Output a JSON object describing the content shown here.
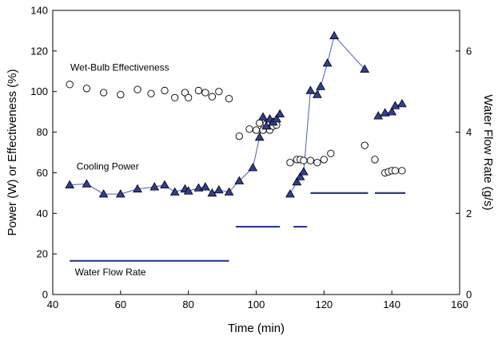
{
  "chart_data": {
    "type": "scatter",
    "title": "",
    "xlabel": "Time (min)",
    "ylabel_left": "Power (W) or Effectiveness (%)",
    "ylabel_right": "Water Flow Rate (g/s)",
    "xlim": [
      40,
      160
    ],
    "ylim_left": [
      0,
      140
    ],
    "ylim_right": [
      0,
      7
    ],
    "x_ticks": [
      "40",
      "60",
      "80",
      "100",
      "120",
      "140",
      "160"
    ],
    "y_ticks_left": [
      "0",
      "20",
      "40",
      "60",
      "80",
      "100",
      "120",
      "140"
    ],
    "y_ticks_right": [
      "0",
      "2",
      "4",
      "6"
    ],
    "grid": false,
    "annotations": {
      "wetbulb": "Wet-Bulb Effectiveness",
      "cooling": "Cooling Power",
      "flow": "Water Flow Rate"
    },
    "series": [
      {
        "name": "Wet-Bulb Effectiveness",
        "axis": "left",
        "marker": "circle",
        "color": "#000000",
        "x": [
          45,
          50,
          55,
          60,
          65,
          69,
          73,
          76,
          79,
          80,
          83,
          85,
          87,
          89,
          92,
          95,
          98,
          100,
          101,
          102,
          103,
          104,
          105,
          106,
          110,
          112,
          113,
          114,
          116,
          118,
          120,
          122,
          132,
          135,
          138,
          139,
          140,
          141,
          143
        ],
        "y": [
          103.5,
          101.5,
          99.5,
          98.5,
          101,
          99,
          100.5,
          97,
          99.5,
          97,
          100.5,
          99.5,
          97.5,
          100,
          96.5,
          78,
          81.5,
          81,
          84.5,
          81,
          84,
          81,
          83,
          83.5,
          65,
          66.5,
          66.5,
          66,
          66,
          65,
          66.5,
          69.5,
          73.5,
          66.5,
          60,
          60.5,
          61,
          61,
          61
        ]
      },
      {
        "name": "Cooling Power",
        "axis": "left",
        "marker": "triangle",
        "color": "#2a3a8c",
        "segments": [
          {
            "x": [
              45,
              50,
              55,
              60,
              65,
              70,
              73,
              76,
              79,
              80,
              83,
              85,
              87,
              89,
              92,
              95,
              99,
              101,
              102,
              103,
              104,
              105,
              106,
              107
            ],
            "y": [
              54,
              54.5,
              49.5,
              49.5,
              52,
              53,
              54,
              50.5,
              52,
              51,
              52.5,
              53,
              50,
              51.5,
              50.5,
              56,
              62.5,
              77.5,
              87.5,
              83,
              86.5,
              85,
              86.5,
              89
            ]
          },
          {
            "x": [
              110,
              112,
              113,
              114,
              116,
              118,
              119,
              121,
              123,
              132
            ],
            "y": [
              49.5,
              55.5,
              58,
              60.5,
              100.5,
              98.5,
              102.5,
              114,
              127.5,
              111
            ]
          },
          {
            "x": [
              136,
              138,
              140,
              141,
              143
            ],
            "y": [
              88,
              89.5,
              90,
              93,
              94
            ]
          }
        ]
      },
      {
        "name": "Water Flow Rate",
        "axis": "right",
        "marker": "line",
        "color": "#2a3a8c",
        "segments": [
          {
            "x": [
              45,
              92
            ],
            "y": [
              0.83,
              0.83
            ]
          },
          {
            "x": [
              94,
              107
            ],
            "y": [
              1.67,
              1.67
            ]
          },
          {
            "x": [
              111,
              115
            ],
            "y": [
              1.67,
              1.67
            ]
          },
          {
            "x": [
              116,
              133
            ],
            "y": [
              2.5,
              2.5
            ]
          },
          {
            "x": [
              135,
              144
            ],
            "y": [
              2.5,
              2.5
            ]
          }
        ]
      }
    ]
  }
}
